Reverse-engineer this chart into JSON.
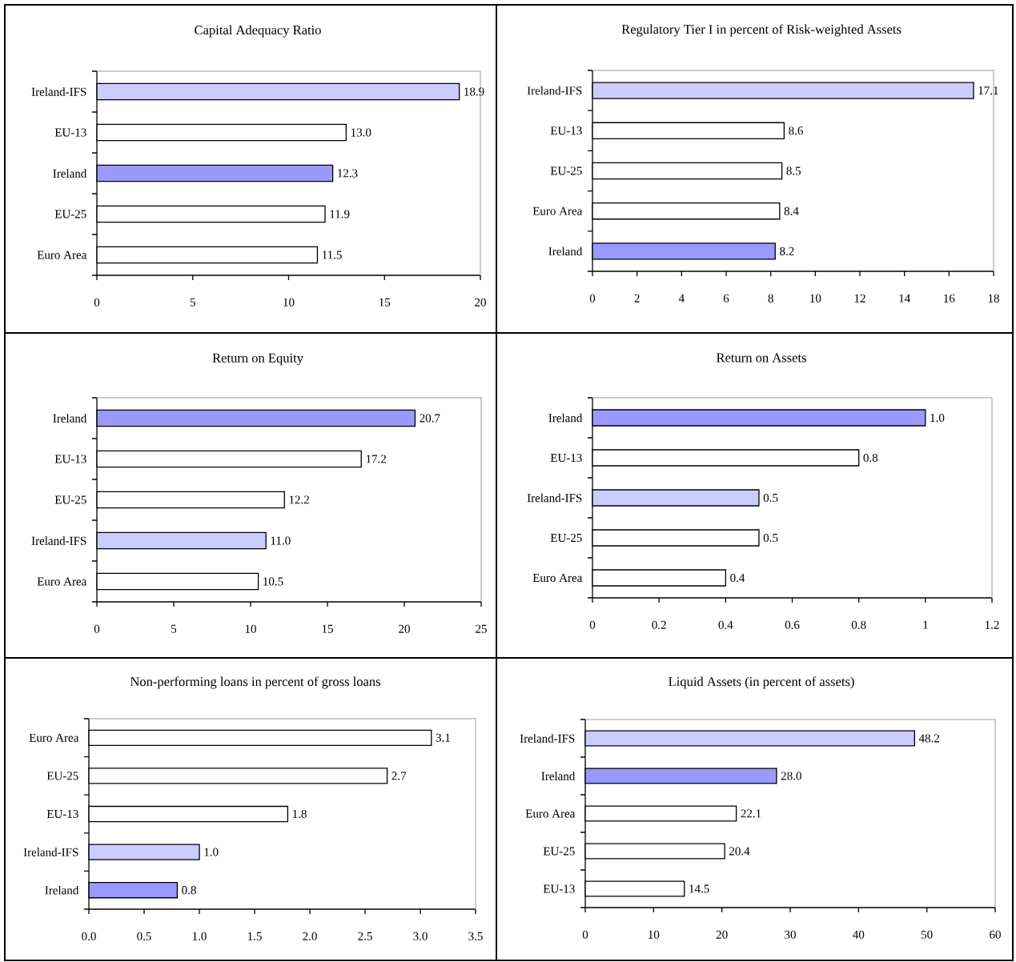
{
  "chart_data": [
    {
      "type": "bar",
      "orientation": "horizontal",
      "title": "Capital Adequacy Ratio",
      "categories": [
        "Ireland-IFS",
        "EU-13",
        "Ireland",
        "EU-25",
        "Euro Area"
      ],
      "values": [
        18.9,
        13.0,
        12.3,
        11.9,
        11.5
      ],
      "value_labels": [
        "18.9",
        "13.0",
        "12.3",
        "11.9",
        "11.5"
      ],
      "colors": [
        "#ccccff",
        "#ffffff",
        "#9999ff",
        "#ffffff",
        "#ffffff"
      ],
      "xlim": [
        0,
        20
      ],
      "xticks": [
        0,
        5,
        10,
        15,
        20
      ]
    },
    {
      "type": "bar",
      "orientation": "horizontal",
      "title": "Regulatory Tier I in percent of Risk-weighted Assets",
      "categories": [
        "Ireland-IFS",
        "EU-13",
        "EU-25",
        "Euro Area",
        "Ireland"
      ],
      "values": [
        17.1,
        8.6,
        8.5,
        8.4,
        8.2
      ],
      "value_labels": [
        "17.1",
        "8.6",
        "8.5",
        "8.4",
        "8.2"
      ],
      "colors": [
        "#ccccff",
        "#ffffff",
        "#ffffff",
        "#ffffff",
        "#9999ff"
      ],
      "xlim": [
        0,
        18
      ],
      "xticks": [
        0,
        2,
        4,
        6,
        8,
        10,
        12,
        14,
        16,
        18
      ]
    },
    {
      "type": "bar",
      "orientation": "horizontal",
      "title": "Return on Equity",
      "categories": [
        "Ireland",
        "EU-13",
        "EU-25",
        "Ireland-IFS",
        "Euro Area"
      ],
      "values": [
        20.7,
        17.2,
        12.2,
        11.0,
        10.5
      ],
      "value_labels": [
        "20.7",
        "17.2",
        "12.2",
        "11.0",
        "10.5"
      ],
      "colors": [
        "#9999ff",
        "#ffffff",
        "#ffffff",
        "#ccccff",
        "#ffffff"
      ],
      "xlim": [
        0,
        25
      ],
      "xticks": [
        0,
        5,
        10,
        15,
        20,
        25
      ]
    },
    {
      "type": "bar",
      "orientation": "horizontal",
      "title": "Return on Assets",
      "categories": [
        "Ireland",
        "EU-13",
        "Ireland-IFS",
        "EU-25",
        "Euro Area"
      ],
      "values": [
        1.0,
        0.8,
        0.5,
        0.5,
        0.4
      ],
      "value_labels": [
        "1.0",
        "0.8",
        "0.5",
        "0.5",
        "0.4"
      ],
      "colors": [
        "#9999ff",
        "#ffffff",
        "#ccccff",
        "#ffffff",
        "#ffffff"
      ],
      "xlim": [
        0,
        1.2
      ],
      "xticks": [
        0,
        0.2,
        0.4,
        0.6,
        0.8,
        1,
        1.2
      ]
    },
    {
      "type": "bar",
      "orientation": "horizontal",
      "title": "Non-performing loans in percent of gross loans",
      "categories": [
        "Euro Area",
        "EU-25",
        "EU-13",
        "Ireland-IFS",
        "Ireland"
      ],
      "values": [
        3.1,
        2.7,
        1.8,
        1.0,
        0.8
      ],
      "value_labels": [
        "3.1",
        "2.7",
        "1.8",
        "1.0",
        "0.8"
      ],
      "colors": [
        "#ffffff",
        "#ffffff",
        "#ffffff",
        "#ccccff",
        "#9999ff"
      ],
      "xlim": [
        0,
        3.5
      ],
      "xticks": [
        {
          "value": 0,
          "label": "0.0"
        },
        {
          "value": 0.5,
          "label": "0.5"
        },
        {
          "value": 1,
          "label": "1.0"
        },
        {
          "value": 1.5,
          "label": "1.5"
        },
        {
          "value": 2,
          "label": "2.0"
        },
        {
          "value": 2.5,
          "label": "2.5"
        },
        {
          "value": 3,
          "label": "3.0"
        },
        {
          "value": 3.5,
          "label": "3.5"
        }
      ]
    },
    {
      "type": "bar",
      "orientation": "horizontal",
      "title": "Liquid Assets (in percent of assets)",
      "categories": [
        "Ireland-IFS",
        "Ireland",
        "Euro Area",
        "EU-25",
        "EU-13"
      ],
      "values": [
        48.2,
        28.0,
        22.1,
        20.4,
        14.5
      ],
      "value_labels": [
        "48.2",
        "28.0",
        "22.1",
        "20.4",
        "14.5"
      ],
      "colors": [
        "#ccccff",
        "#9999ff",
        "#ffffff",
        "#ffffff",
        "#ffffff"
      ],
      "xlim": [
        0,
        60
      ],
      "xticks": [
        0,
        10,
        20,
        30,
        40,
        50,
        60
      ]
    }
  ]
}
